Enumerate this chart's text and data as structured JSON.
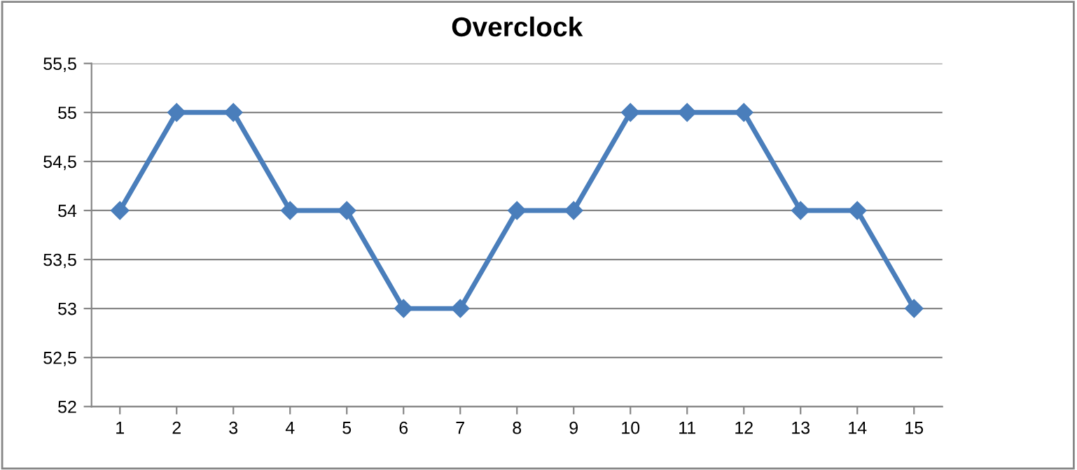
{
  "chart_data": {
    "type": "line",
    "title": "Overclock",
    "categories": [
      "1",
      "2",
      "3",
      "4",
      "5",
      "6",
      "7",
      "8",
      "9",
      "10",
      "11",
      "12",
      "13",
      "14",
      "15"
    ],
    "series": [
      {
        "color": "#4a7ebb",
        "values": [
          54,
          55,
          55,
          54,
          54,
          53,
          53,
          54,
          54,
          55,
          55,
          55,
          54,
          54,
          53
        ]
      }
    ],
    "ylim": [
      52,
      55.5
    ],
    "yticks": [
      52,
      {
        "value": 52.5,
        "label": "52,5"
      },
      53,
      {
        "value": 53.5,
        "label": "53,5"
      },
      54,
      {
        "value": 54.5,
        "label": "54,5"
      },
      55,
      {
        "value": 55.5,
        "label": "55,5"
      }
    ],
    "grid": "y",
    "marker": "diamond",
    "line_style": "solid"
  }
}
